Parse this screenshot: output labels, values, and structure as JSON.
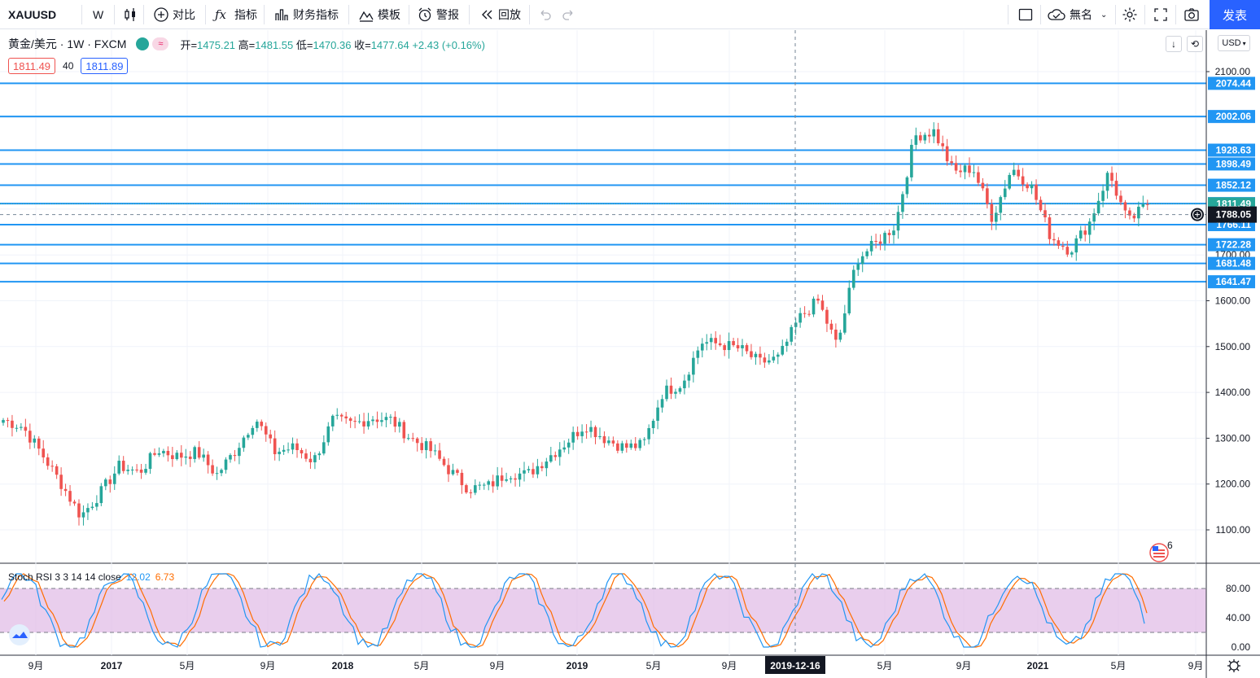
{
  "toolbar": {
    "symbol": "XAUUSD",
    "interval": "W",
    "compare_label": "对比",
    "indicators_label": "指标",
    "financials_label": "财务指标",
    "templates_label": "模板",
    "alert_label": "警报",
    "replay_label": "回放",
    "layout_name": "無名",
    "publish_label": "发表"
  },
  "legend": {
    "title": "黄金/美元 · 1W · FXCM",
    "open_label": "开=",
    "open": "1475.21",
    "high_label": "高=",
    "high": "1481.55",
    "low_label": "低=",
    "low": "1470.36",
    "close_label": "收=",
    "close": "1477.64",
    "change": "+2.43 (+0.16%)",
    "bid": "1811.49",
    "spread": "40",
    "ask": "1811.89",
    "wave_icon": "≈"
  },
  "currency": "USD",
  "price_axis": {
    "ticks": [
      "2100.00",
      "1600.00",
      "1500.00",
      "1400.00",
      "1300.00",
      "1200.00",
      "1100.00"
    ],
    "hidden_tick": "1700.00"
  },
  "horizontal_lines": [
    "2074.44",
    "2002.06",
    "1928.63",
    "1898.49",
    "1852.12",
    "1812.04",
    "1766.11",
    "1722.28",
    "1681.48",
    "1641.47"
  ],
  "current_price": "1811.49",
  "crosshair_price": "1788.05",
  "crosshair_date": "2019-12-16",
  "time_axis": [
    "9月",
    "2017",
    "5月",
    "9月",
    "2018",
    "5月",
    "9月",
    "2019",
    "5月",
    "9月",
    "5月",
    "9月",
    "2021",
    "5月",
    "9月"
  ],
  "stoch": {
    "label": "Stoch RSI 3 3 14 14 close",
    "k": "12.02",
    "d": "6.73",
    "ticks": [
      "80.00",
      "40.00",
      "0.00"
    ]
  },
  "event_badge": "6",
  "colors": {
    "up": "#26a69a",
    "down": "#ef5350",
    "hline": "#2196f3",
    "stoch_k": "#2196f3",
    "stoch_d": "#ff6d00",
    "stoch_band": "#e1bee7",
    "accent": "#2962ff"
  },
  "chart_data": {
    "type": "candlestick",
    "symbol": "XAUUSD",
    "interval": "1W",
    "ylim": [
      1020,
      2140
    ],
    "anchors": [
      [
        "2016-08",
        1340
      ],
      [
        "2016-09",
        1325
      ],
      [
        "2016-10",
        1265
      ],
      [
        "2016-11",
        1200
      ],
      [
        "2016-12",
        1130
      ],
      [
        "2017-01",
        1180
      ],
      [
        "2017-02",
        1240
      ],
      [
        "2017-03",
        1225
      ],
      [
        "2017-04",
        1275
      ],
      [
        "2017-05",
        1260
      ],
      [
        "2017-06",
        1270
      ],
      [
        "2017-07",
        1220
      ],
      [
        "2017-08",
        1275
      ],
      [
        "2017-09",
        1345
      ],
      [
        "2017-10",
        1270
      ],
      [
        "2017-11",
        1280
      ],
      [
        "2017-12",
        1250
      ],
      [
        "2018-01",
        1340
      ],
      [
        "2018-02",
        1330
      ],
      [
        "2018-03",
        1345
      ],
      [
        "2018-04",
        1340
      ],
      [
        "2018-05",
        1300
      ],
      [
        "2018-06",
        1275
      ],
      [
        "2018-07",
        1230
      ],
      [
        "2018-08",
        1190
      ],
      [
        "2018-09",
        1195
      ],
      [
        "2018-10",
        1225
      ],
      [
        "2018-11",
        1220
      ],
      [
        "2018-12",
        1255
      ],
      [
        "2019-01",
        1290
      ],
      [
        "2019-02",
        1330
      ],
      [
        "2019-03",
        1300
      ],
      [
        "2019-04",
        1280
      ],
      [
        "2019-05",
        1285
      ],
      [
        "2019-06",
        1400
      ],
      [
        "2019-07",
        1420
      ],
      [
        "2019-08",
        1510
      ],
      [
        "2019-09",
        1505
      ],
      [
        "2019-10",
        1495
      ],
      [
        "2019-11",
        1465
      ],
      [
        "2019-12",
        1475
      ],
      [
        "2020-01",
        1560
      ],
      [
        "2020-02",
        1600
      ],
      [
        "2020-03",
        1500
      ],
      [
        "2020-04",
        1690
      ],
      [
        "2020-05",
        1725
      ],
      [
        "2020-06",
        1765
      ],
      [
        "2020-07",
        1960
      ],
      [
        "2020-08",
        1970
      ],
      [
        "2020-09",
        1880
      ],
      [
        "2020-10",
        1890
      ],
      [
        "2020-11",
        1780
      ],
      [
        "2020-12",
        1890
      ],
      [
        "2021-01",
        1850
      ],
      [
        "2021-02",
        1740
      ],
      [
        "2021-03",
        1710
      ],
      [
        "2021-04",
        1770
      ],
      [
        "2021-05",
        1880
      ],
      [
        "2021-06",
        1770
      ],
      [
        "2021-07",
        1812
      ]
    ],
    "stoch_rsi": {
      "k_last": 12.02,
      "d_last": 6.73,
      "overbought": 80,
      "oversold": 20
    }
  }
}
